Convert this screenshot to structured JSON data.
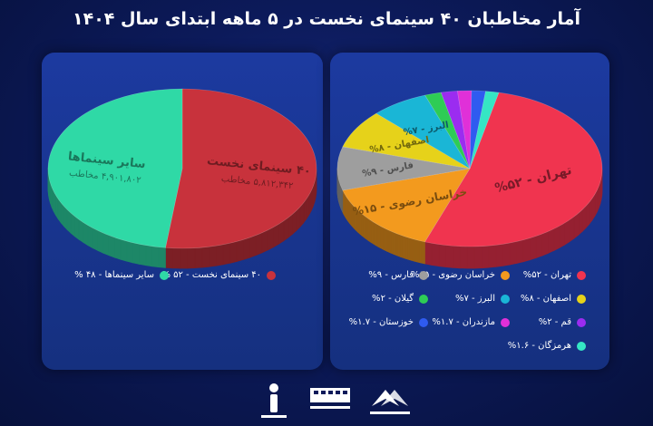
{
  "title": "آمار مخاطبان ۴۰ سینمای نخست در ۵ ماهه ابتدای سال ۱۴۰۴",
  "chart_data": [
    {
      "type": "pie",
      "slices": [
        {
          "label": "۴۰ سینمای نخست",
          "sub": "۵,۸۱۲,۳۴۲ مخاطب",
          "legend": "۴۰ سینمای نخست - ۵۲ %",
          "value": 52,
          "color": "#c8323c"
        },
        {
          "label": "سایر سینماها",
          "sub": "۴,۹۰۱,۸۰۲ مخاطب",
          "legend": "سایر سینماها - ۴۸ %",
          "value": 48,
          "color": "#2fd9a6"
        }
      ]
    },
    {
      "type": "pie",
      "slices": [
        {
          "label": "تهران - ۵۲%",
          "legend": "تهران - ۵۲%",
          "value": 52,
          "color": "#f0344f"
        },
        {
          "label": "خراسان رضوی - ۱۵%",
          "legend": "خراسان رضوی - ۱۵%",
          "value": 15,
          "color": "#f39a1e"
        },
        {
          "label": "فارس - ۹%",
          "legend": "فارس - ۹%",
          "value": 9,
          "color": "#9e9e9e"
        },
        {
          "label": "اصفهان - ۸%",
          "legend": "اصفهان - ۸%",
          "value": 8,
          "color": "#e6d21a"
        },
        {
          "label": "البرز - ۷%",
          "legend": "البرز - ۷%",
          "value": 7,
          "color": "#1ab6d6"
        },
        {
          "label": "",
          "legend": "گیلان - ۲%",
          "value": 2,
          "color": "#2ecc55"
        },
        {
          "label": "",
          "legend": "قم - ۲%",
          "value": 2,
          "color": "#9b2cf0"
        },
        {
          "label": "",
          "legend": "مازندران - ۱.۷%",
          "value": 1.7,
          "color": "#e030d8"
        },
        {
          "label": "",
          "legend": "خوزستان - ۱.۷%",
          "value": 1.7,
          "color": "#2f5bf0"
        },
        {
          "label": "",
          "legend": "هرمزگان - ۱.۶%",
          "value": 1.6,
          "color": "#35e6c4"
        }
      ]
    }
  ],
  "logos": [
    {
      "name": "ministry-logo",
      "text": "سازمان سینمایی"
    },
    {
      "name": "cinema-logo",
      "text": "سینما"
    },
    {
      "name": "info-logo",
      "text": "آمار"
    }
  ]
}
